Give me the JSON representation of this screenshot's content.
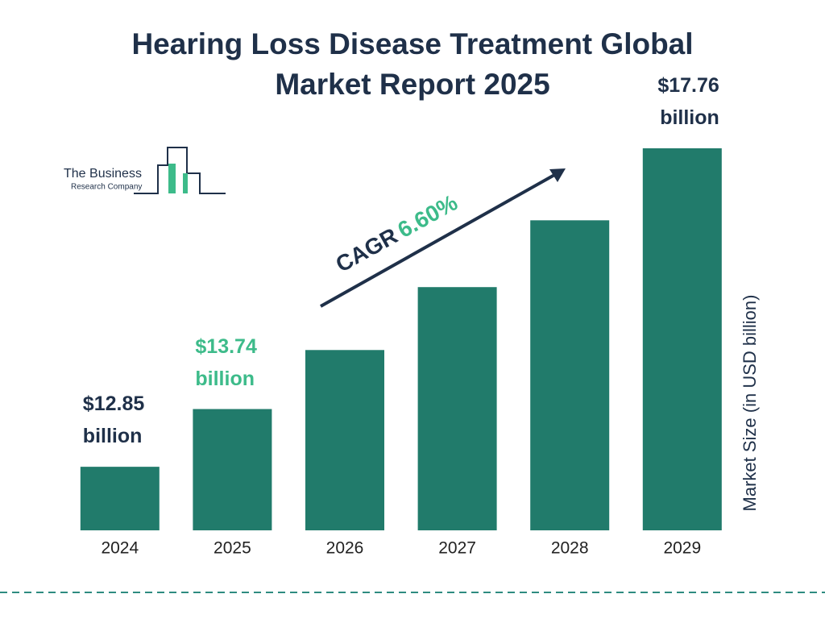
{
  "chart_data": {
    "type": "bar",
    "title": "Hearing Loss Disease Treatment Global Market Report 2025",
    "categories": [
      "2024",
      "2025",
      "2026",
      "2027",
      "2028",
      "2029"
    ],
    "values": [
      12.85,
      13.74,
      14.65,
      15.62,
      16.65,
      17.76
    ],
    "value_labels": [
      "$12.85 billion",
      "$13.74 billion",
      null,
      null,
      null,
      "$17.76 billion"
    ],
    "value_label_colors": [
      "#1f3049",
      "#3dbb8a",
      null,
      null,
      null,
      "#1f3049"
    ],
    "color": "#217b6b",
    "ylim": [
      11.87,
      17.76
    ],
    "y_axis_label": "Market Size (in USD billion)",
    "annotation": {
      "label": "CAGR",
      "value": "6.60%"
    },
    "logo": {
      "line1": "The Business",
      "line2": "Research Company"
    }
  }
}
